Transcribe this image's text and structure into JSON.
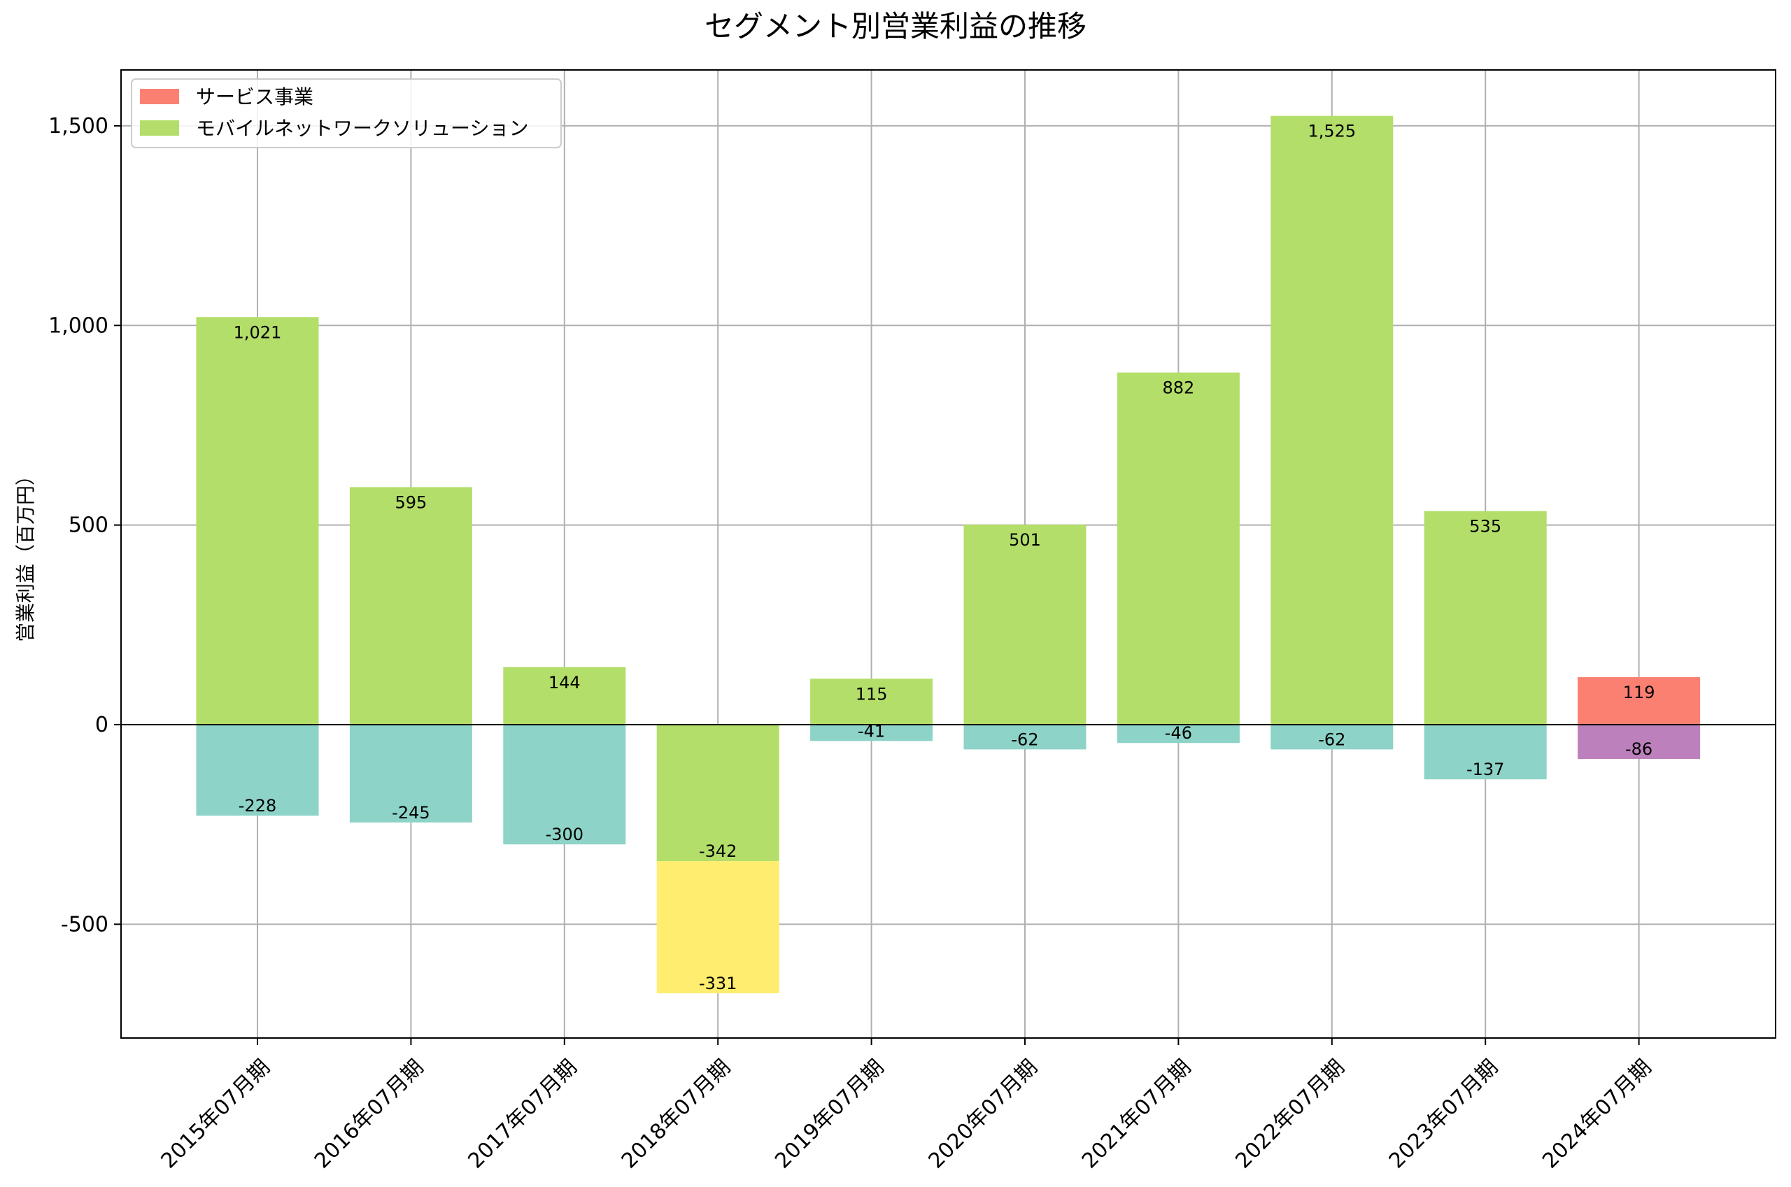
{
  "chart_data": {
    "type": "bar",
    "stacked": true,
    "title": "セグメント別営業利益の推移",
    "xlabel": "",
    "ylabel": "営業利益（百万円）",
    "ylim": [
      -785,
      1640
    ],
    "yticks": [
      -500,
      0,
      500,
      1000,
      1500
    ],
    "ytick_labels": [
      "-500",
      "0",
      "500",
      "1,000",
      "1,500"
    ],
    "grid": true,
    "legend_position": "top-left",
    "categories": [
      "2015年07月期",
      "2016年07月期",
      "2017年07月期",
      "2018年07月期",
      "2019年07月期",
      "2020年07月期",
      "2021年07月期",
      "2022年07月期",
      "2023年07月期",
      "2024年07月期"
    ],
    "series": [
      {
        "name": "",
        "color": "#8dd3c7",
        "values": [
          -228,
          -245,
          -300,
          null,
          -41,
          -62,
          -46,
          -62,
          -137,
          null
        ]
      },
      {
        "name": "モバイルネットワークソリューション",
        "color": "#b3de69",
        "values": [
          1021,
          595,
          144,
          -342,
          115,
          501,
          882,
          1525,
          535,
          null
        ]
      },
      {
        "name": "",
        "color": "#ffed6f",
        "values": [
          null,
          null,
          null,
          -331,
          null,
          null,
          null,
          null,
          null,
          null
        ]
      },
      {
        "name": "サービス事業",
        "color": "#fb8072",
        "values": [
          null,
          null,
          null,
          null,
          null,
          null,
          null,
          null,
          null,
          119
        ]
      },
      {
        "name": "",
        "color": "#bc80bd",
        "values": [
          null,
          null,
          null,
          null,
          null,
          null,
          null,
          null,
          null,
          -86
        ]
      }
    ],
    "data_labels": [
      [
        "-228",
        "1,021",
        "",
        "",
        ""
      ],
      [
        "-245",
        "595",
        "",
        "",
        ""
      ],
      [
        "-300",
        "144",
        "",
        "",
        ""
      ],
      [
        "",
        "-342",
        "-331",
        "",
        ""
      ],
      [
        "-41",
        "115",
        "",
        "",
        ""
      ],
      [
        "-62",
        "501",
        "",
        "",
        ""
      ],
      [
        "-46",
        "882",
        "",
        "",
        ""
      ],
      [
        "-62",
        "1,525",
        "",
        "",
        ""
      ],
      [
        "-137",
        "535",
        "",
        "",
        ""
      ],
      [
        "",
        "",
        "",
        "119",
        "-86"
      ]
    ],
    "legend": [
      {
        "label": "サービス事業",
        "color": "#fb8072"
      },
      {
        "label": "モバイルネットワークソリューション",
        "color": "#b3de69"
      }
    ]
  }
}
